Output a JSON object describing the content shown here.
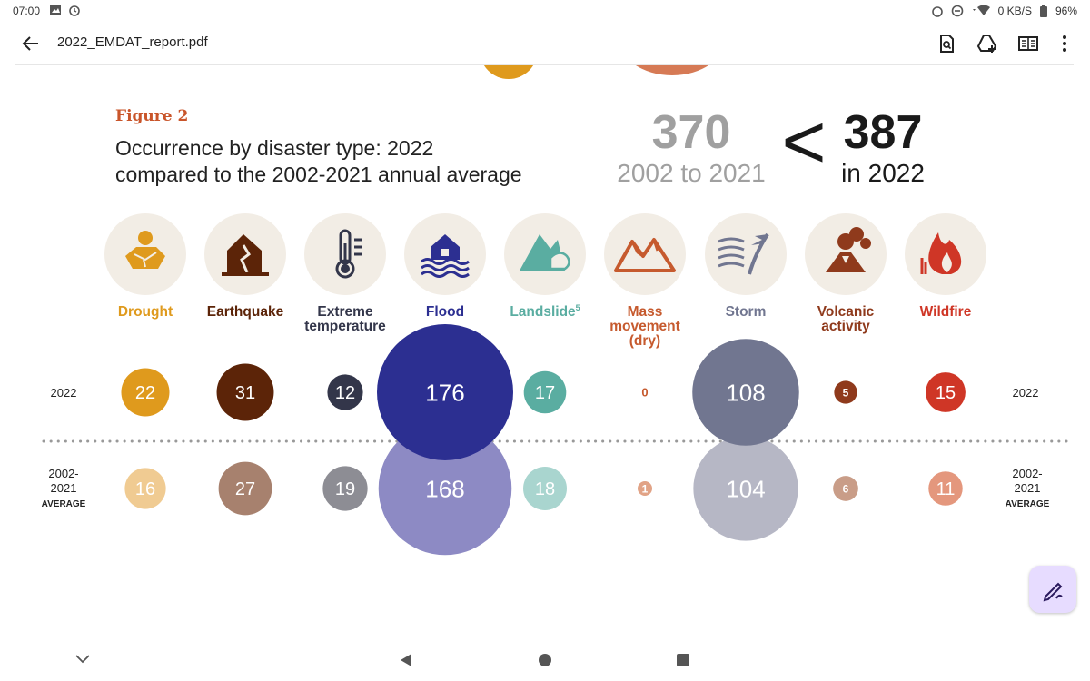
{
  "status_bar": {
    "time": "07:00",
    "network_speed": "0 KB/S",
    "battery": "96%"
  },
  "toolbar": {
    "file_name": "2022_EMDAT_report.pdf"
  },
  "figure": {
    "label": "Figure 2",
    "title_line1": "Occurrence by disaster type: 2022",
    "title_line2": "compared to the 2002-2021 annual average",
    "avg_total": "370",
    "avg_period": "2002 to 2021",
    "comparison_symbol": "<",
    "year_total": "387",
    "year_period": "in 2022",
    "row_label_2022": "2022",
    "row_label_avg_line1": "2002-",
    "row_label_avg_line2": "2021",
    "row_label_avg_line3": "AVERAGE"
  },
  "chart_data": {
    "type": "bubble",
    "categories": [
      "Drought",
      "Earthquake",
      "Extreme temperature",
      "Flood",
      "Landslide",
      "Mass movement (dry)",
      "Storm",
      "Volcanic activity",
      "Wildfire"
    ],
    "category_label_lines": [
      [
        "Drought"
      ],
      [
        "Earthquake"
      ],
      [
        "Extreme",
        "temperature"
      ],
      [
        "Flood"
      ],
      [
        "Landslide"
      ],
      [
        "Mass",
        "movement",
        "(dry)"
      ],
      [
        "Storm"
      ],
      [
        "Volcanic",
        "activity"
      ],
      [
        "Wildfire"
      ]
    ],
    "landslide_footnote": "5",
    "series": [
      {
        "name": "2022",
        "values": [
          22,
          31,
          12,
          176,
          17,
          0,
          108,
          5,
          15
        ]
      },
      {
        "name": "2002-2021 AVERAGE",
        "values": [
          16,
          27,
          19,
          168,
          18,
          1,
          104,
          6,
          11
        ]
      }
    ],
    "colors_2022": [
      "#df9a1d",
      "#5c2408",
      "#33364a",
      "#2c2f91",
      "#5aada1",
      "#c65a2e",
      "#717690",
      "#8f3a1c",
      "#cf3626"
    ],
    "colors_avg": [
      "#f0cb92",
      "#a7816e",
      "#8d8d94",
      "#8d8ac4",
      "#a9d5cf",
      "#e1a386",
      "#b6b7c5",
      "#c99d88",
      "#e4977d"
    ],
    "label_colors": [
      "#df9a1d",
      "#5c2408",
      "#33364a",
      "#2c2f91",
      "#5aada1",
      "#c65a2e",
      "#717690",
      "#8f3a1c",
      "#cf3626"
    ],
    "icons": [
      "drought-icon",
      "earthquake-icon",
      "thermometer-icon",
      "flood-icon",
      "landslide-icon",
      "mass-movement-icon",
      "storm-icon",
      "volcano-icon",
      "wildfire-icon"
    ]
  }
}
